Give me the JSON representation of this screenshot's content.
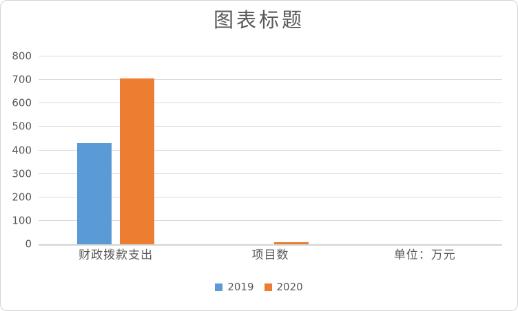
{
  "chart_data": {
    "type": "bar",
    "title": "图表标题",
    "categories": [
      "财政拨款支出",
      "项目数",
      "单位：万元"
    ],
    "series": [
      {
        "name": "2019",
        "color": "#5B9BD5",
        "values": [
          430,
          0,
          0
        ]
      },
      {
        "name": "2020",
        "color": "#ED7D31",
        "values": [
          707,
          8,
          0
        ]
      }
    ],
    "xlabel": "",
    "ylabel": "",
    "ylim": [
      0,
      800
    ],
    "yticks": [
      0,
      100,
      200,
      300,
      400,
      500,
      600,
      700,
      800
    ],
    "grid": true,
    "legend_position": "bottom",
    "legend_labels": [
      "2019",
      "2020"
    ]
  },
  "colors": {
    "series_2019": "#5B9BD5",
    "series_2020": "#ED7D31",
    "text": "#595959",
    "gridline": "#D9D9D9",
    "axis_line": "#D2D2D2",
    "frame_border": "#D4D4D4",
    "background": "#FFFFFF"
  }
}
